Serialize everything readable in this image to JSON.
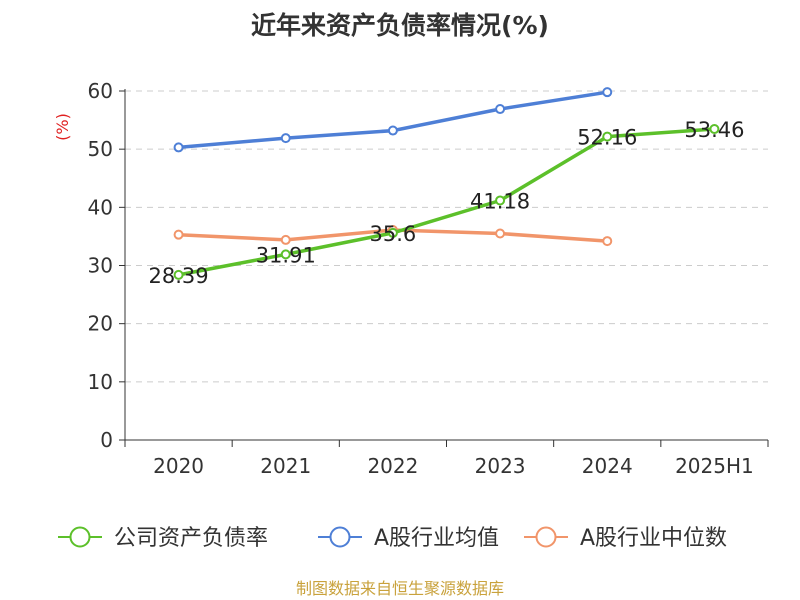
{
  "chart_data": {
    "type": "line",
    "title": "近年来资产负债率情况(%)",
    "xlabel": "",
    "ylabel": "(%)",
    "ylim": [
      0,
      60
    ],
    "yticks": [
      0,
      10,
      20,
      30,
      40,
      50,
      60
    ],
    "grid": true,
    "legend_position": "bottom",
    "categories": [
      "2020",
      "2021",
      "2022",
      "2023",
      "2024",
      "2025H1"
    ],
    "series": [
      {
        "name": "公司资产负债率",
        "color": "#5cc02a",
        "values": [
          28.39,
          31.91,
          35.6,
          41.18,
          52.16,
          53.46
        ],
        "labels": [
          "28.39",
          "31.91",
          "35.6",
          "41.18",
          "52.16",
          "53.46"
        ],
        "show_labels": true
      },
      {
        "name": "A股行业均值",
        "color": "#4e7fd6",
        "values": [
          50.3,
          51.9,
          53.2,
          56.9,
          59.8,
          null
        ],
        "show_labels": false
      },
      {
        "name": "A股行业中位数",
        "color": "#f1956a",
        "values": [
          35.3,
          34.4,
          36.1,
          35.5,
          34.2,
          null
        ],
        "show_labels": false
      }
    ],
    "source": "制图数据来自恒生聚源数据库",
    "colors": {
      "source_text": "#c9a23c",
      "ylabel_text": "#e02020"
    }
  }
}
